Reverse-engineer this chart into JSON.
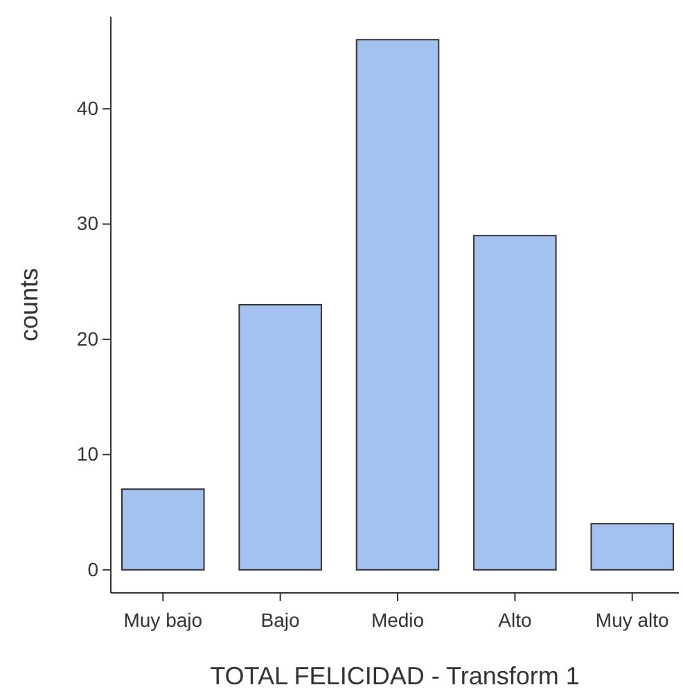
{
  "chart_data": {
    "type": "bar",
    "xlabel": "TOTAL FELICIDAD - Transform 1",
    "ylabel": "counts",
    "categories": [
      "Muy bajo",
      "Bajo",
      "Medio",
      "Alto",
      "Muy alto"
    ],
    "values": [
      7,
      23,
      46,
      29,
      4
    ],
    "color": "#a4c2f0",
    "ylim": [
      -2,
      48
    ],
    "yticks": [
      0,
      10,
      20,
      30,
      40
    ],
    "grid": false
  }
}
